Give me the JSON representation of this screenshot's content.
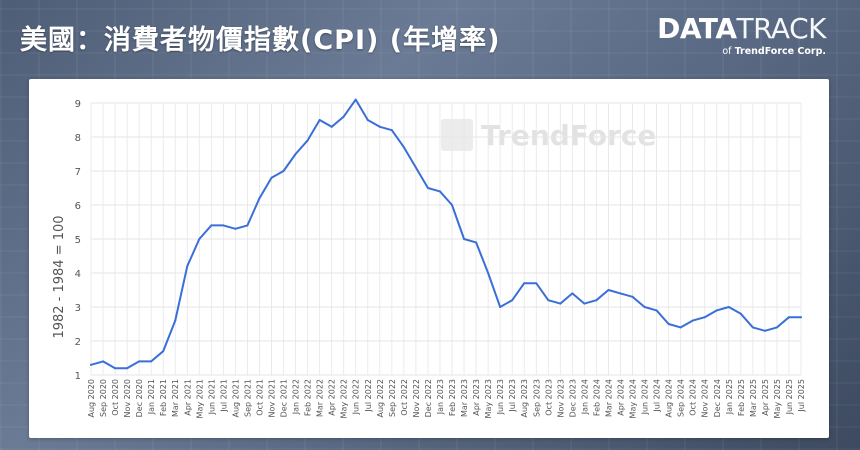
{
  "header": {
    "title": "美國：消費者物價指數(CPI) (年增率)",
    "brand_data": "DATA",
    "brand_track": "TRACK",
    "brand_sub_prefix": "of",
    "brand_sub_company": "TrendForce Corp."
  },
  "watermark": "TrendForce",
  "colors": {
    "line": "#3a6fd8",
    "grid": "#e6e6e6",
    "title": "#ffffff"
  },
  "chart_data": {
    "type": "line",
    "title": "美國：消費者物價指數(CPI) (年增率)",
    "ylabel": "1982 - 1984 = 100",
    "xlabel": "",
    "ylim": [
      1,
      9
    ],
    "yticks": [
      1,
      2,
      3,
      4,
      5,
      6,
      7,
      8,
      9
    ],
    "grid": true,
    "categories": [
      "Aug 2020",
      "Sep 2020",
      "Oct 2020",
      "Nov 2020",
      "Dec 2020",
      "Jan 2021",
      "Feb 2021",
      "Mar 2021",
      "Apr 2021",
      "May 2021",
      "Jun 2021",
      "Jul 2021",
      "Aug 2021",
      "Sep 2021",
      "Oct 2021",
      "Nov 2021",
      "Dec 2021",
      "Jan 2022",
      "Feb 2022",
      "Mar 2022",
      "Apr 2022",
      "May 2022",
      "Jun 2022",
      "Jul 2022",
      "Aug 2022",
      "Sep 2022",
      "Oct 2022",
      "Nov 2022",
      "Dec 2022",
      "Jan 2023",
      "Feb 2023",
      "Mar 2023",
      "Apr 2023",
      "May 2023",
      "Jun 2023",
      "Jul 2023",
      "Aug 2023",
      "Sep 2023",
      "Oct 2023",
      "Nov 2023",
      "Dec 2023",
      "Jan 2024",
      "Feb 2024",
      "Mar 2024",
      "Apr 2024",
      "May 2024",
      "Jun 2024",
      "Jul 2024",
      "Aug 2024",
      "Sep 2024",
      "Oct 2024",
      "Nov 2024",
      "Dec 2024",
      "Jan 2025",
      "Feb 2025",
      "Mar 2025",
      "Apr 2025",
      "May 2025",
      "Jun 2025",
      "Jul 2025"
    ],
    "series": [
      {
        "values": [
          1.3,
          1.4,
          1.2,
          1.2,
          1.4,
          1.4,
          1.7,
          2.6,
          4.2,
          5.0,
          5.4,
          5.4,
          5.3,
          5.4,
          6.2,
          6.8,
          7.0,
          7.5,
          7.9,
          8.5,
          8.3,
          8.6,
          9.1,
          8.5,
          8.3,
          8.2,
          7.7,
          7.1,
          6.5,
          6.4,
          6.0,
          5.0,
          4.9,
          4.0,
          3.0,
          3.2,
          3.7,
          3.7,
          3.2,
          3.1,
          3.4,
          3.1,
          3.2,
          3.5,
          3.4,
          3.3,
          3.0,
          2.9,
          2.5,
          2.4,
          2.6,
          2.7,
          2.9,
          3.0,
          2.8,
          2.4,
          2.3,
          2.4,
          2.7,
          2.7
        ]
      }
    ]
  }
}
